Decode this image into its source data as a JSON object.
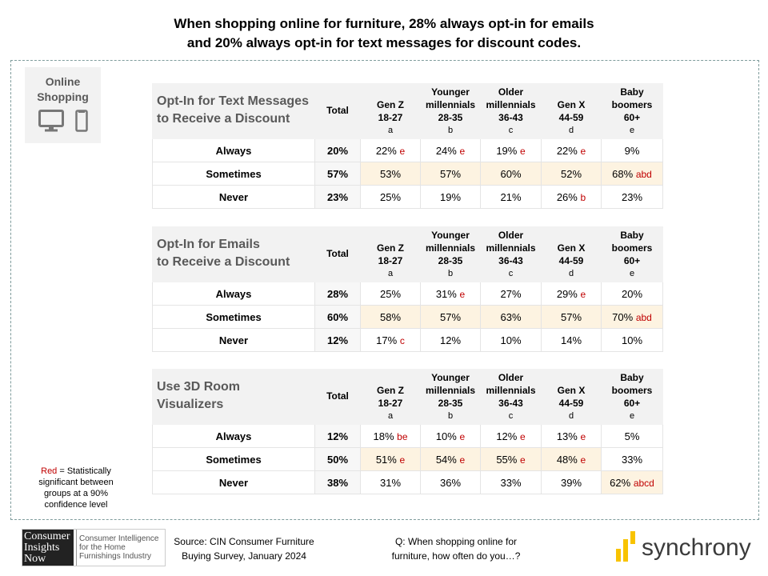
{
  "title": [
    "When shopping online for furniture, 28% always opt-in for emails",
    "and 20% always opt-in for text messages for discount codes."
  ],
  "badge": {
    "line1": "Online",
    "line2": "Shopping",
    "icons": [
      "desktop-icon",
      "phone-icon"
    ]
  },
  "columns": {
    "total": "Total",
    "groups": [
      {
        "name": [
          "",
          "Gen Z"
        ],
        "age": "18-27",
        "letter": "a"
      },
      {
        "name": [
          "Younger",
          "millennials"
        ],
        "age": "28-35",
        "letter": "b"
      },
      {
        "name": [
          "Older",
          "millennials"
        ],
        "age": "36-43",
        "letter": "c"
      },
      {
        "name": [
          "",
          "Gen X"
        ],
        "age": "44-59",
        "letter": "d"
      },
      {
        "name": [
          "Baby",
          "boomers"
        ],
        "age": "60+",
        "letter": "e"
      }
    ]
  },
  "tables": [
    {
      "title": [
        "Opt-In for Text Messages",
        "to Receive a Discount"
      ],
      "rows": [
        {
          "label": "Always",
          "total": "20%",
          "cells": [
            {
              "v": "22%",
              "s": "e"
            },
            {
              "v": "24%",
              "s": "e"
            },
            {
              "v": "19%",
              "s": "e"
            },
            {
              "v": "22%",
              "s": "e"
            },
            {
              "v": "9%",
              "s": ""
            }
          ]
        },
        {
          "label": "Sometimes",
          "total": "57%",
          "cells": [
            {
              "v": "53%",
              "s": "",
              "hl": true
            },
            {
              "v": "57%",
              "s": "",
              "hl": true
            },
            {
              "v": "60%",
              "s": "",
              "hl": true
            },
            {
              "v": "52%",
              "s": "",
              "hl": true
            },
            {
              "v": "68%",
              "s": "abd",
              "hl": true
            }
          ]
        },
        {
          "label": "Never",
          "total": "23%",
          "cells": [
            {
              "v": "25%",
              "s": ""
            },
            {
              "v": "19%",
              "s": ""
            },
            {
              "v": "21%",
              "s": ""
            },
            {
              "v": "26%",
              "s": "b"
            },
            {
              "v": "23%",
              "s": ""
            }
          ]
        }
      ]
    },
    {
      "title": [
        "Opt-In for Emails",
        "to Receive a Discount"
      ],
      "rows": [
        {
          "label": "Always",
          "total": "28%",
          "cells": [
            {
              "v": "25%",
              "s": ""
            },
            {
              "v": "31%",
              "s": "e"
            },
            {
              "v": "27%",
              "s": ""
            },
            {
              "v": "29%",
              "s": "e"
            },
            {
              "v": "20%",
              "s": ""
            }
          ]
        },
        {
          "label": "Sometimes",
          "total": "60%",
          "cells": [
            {
              "v": "58%",
              "s": "",
              "hl": true
            },
            {
              "v": "57%",
              "s": "",
              "hl": true
            },
            {
              "v": "63%",
              "s": "",
              "hl": true
            },
            {
              "v": "57%",
              "s": "",
              "hl": true
            },
            {
              "v": "70%",
              "s": "abd",
              "hl": true
            }
          ]
        },
        {
          "label": "Never",
          "total": "12%",
          "cells": [
            {
              "v": "17%",
              "s": "c"
            },
            {
              "v": "12%",
              "s": ""
            },
            {
              "v": "10%",
              "s": ""
            },
            {
              "v": "14%",
              "s": ""
            },
            {
              "v": "10%",
              "s": ""
            }
          ]
        }
      ]
    },
    {
      "title": [
        "Use 3D Room",
        "Visualizers"
      ],
      "rows": [
        {
          "label": "Always",
          "total": "12%",
          "cells": [
            {
              "v": "18%",
              "s": "be"
            },
            {
              "v": "10%",
              "s": "e"
            },
            {
              "v": "12%",
              "s": "e"
            },
            {
              "v": "13%",
              "s": "e"
            },
            {
              "v": "5%",
              "s": ""
            }
          ]
        },
        {
          "label": "Sometimes",
          "total": "50%",
          "cells": [
            {
              "v": "51%",
              "s": "e",
              "hl": true
            },
            {
              "v": "54%",
              "s": "e",
              "hl": true
            },
            {
              "v": "55%",
              "s": "e",
              "hl": true
            },
            {
              "v": "48%",
              "s": "e",
              "hl": true
            },
            {
              "v": "33%",
              "s": ""
            }
          ]
        },
        {
          "label": "Never",
          "total": "38%",
          "cells": [
            {
              "v": "31%",
              "s": ""
            },
            {
              "v": "36%",
              "s": ""
            },
            {
              "v": "33%",
              "s": ""
            },
            {
              "v": "39%",
              "s": ""
            },
            {
              "v": "62%",
              "s": "abcd",
              "hl": true
            }
          ]
        }
      ]
    }
  ],
  "legend": {
    "red": "Red",
    "text": " = Statistically significant between groups at a 90% confidence level"
  },
  "logo_cin": {
    "dark": [
      "Consumer",
      "Insights",
      "Now"
    ],
    "lite": [
      "Consumer Intelligence",
      "for the Home",
      "Furnishings Industry"
    ]
  },
  "source": [
    "Source: CIN Consumer Furniture",
    "Buying Survey, January 2024"
  ],
  "question": [
    "Q: When shopping online for",
    "furniture, how often do you…?"
  ],
  "logo_syn": "synchrony",
  "colors": {
    "sig": "#c00000",
    "highlight": "#fdf3e1",
    "header": "#f2f2f2",
    "brand_yellow": "#f8c300"
  }
}
